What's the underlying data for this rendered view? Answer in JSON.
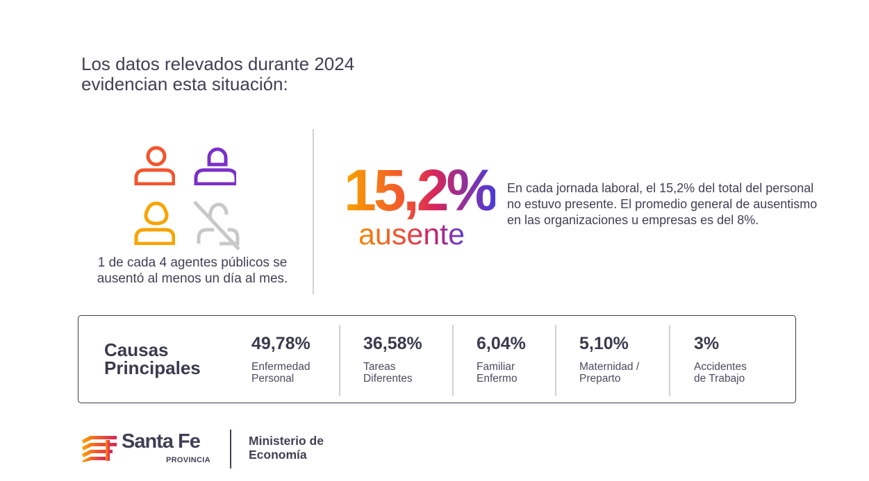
{
  "intro": {
    "line1": "Los datos relevados durante 2024",
    "line2": "evidencian esta situación:"
  },
  "stat_people": {
    "caption_line1": "1 de cada 4 agentes públicos se",
    "caption_line2": "ausentó al menos un día al mes.",
    "icons": [
      "person-icon-red",
      "person-icon-purple",
      "person-icon-orange",
      "person-absent-icon"
    ],
    "colors": {
      "red": "#f2552e",
      "purple": "#7b2fc9",
      "orange": "#f7a400",
      "grey": "#c8c8c8"
    }
  },
  "highlight": {
    "percent": "15,2%",
    "word": "ausente",
    "description": "En cada jornada laboral, el 15,2% del total del personal no estuvo presente. El promedio general de ausentismo en las organizaciones u empresas es del 8%."
  },
  "causes": {
    "title_line1": "Causas",
    "title_line2": "Principales",
    "items": [
      {
        "percent": "49,78%",
        "label_line1": "Enfermedad",
        "label_line2": "Personal"
      },
      {
        "percent": "36,58%",
        "label_line1": "Tareas",
        "label_line2": "Diferentes"
      },
      {
        "percent": "6,04%",
        "label_line1": "Familiar",
        "label_line2": "Enfermo"
      },
      {
        "percent": "5,10%",
        "label_line1": "Maternidad /",
        "label_line2": "Preparto"
      },
      {
        "percent": "3%",
        "label_line1": "Accidentes",
        "label_line2": "de Trabajo"
      }
    ]
  },
  "footer": {
    "brand": "Santa Fe",
    "brand_sub": "PROVINCIA",
    "ministry_line1": "Ministerio de",
    "ministry_line2": "Economía"
  }
}
